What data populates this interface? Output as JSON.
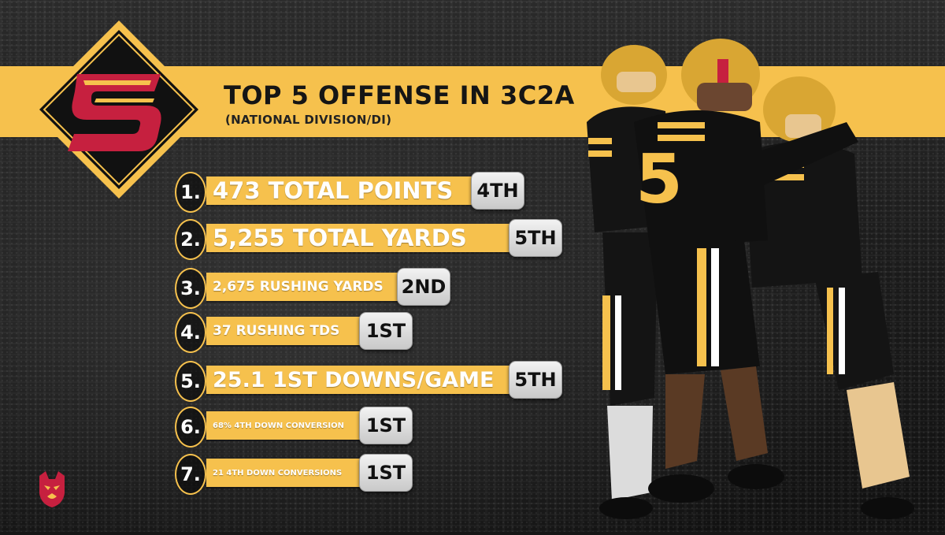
{
  "graphic": {
    "title": "TOP 5 OFFENSE IN 3C2A",
    "subtitle": "(NATIONAL DIVISION/DI)",
    "logo_letter": "S",
    "colors": {
      "gold": "#f6c14d",
      "crimson": "#c6203f",
      "dark": "#161616",
      "rank_silver": "#dcdcdc"
    }
  },
  "stats": [
    {
      "num": "1.",
      "label": "473 TOTAL POINTS",
      "rank": "4TH"
    },
    {
      "num": "2.",
      "label": "5,255 TOTAL YARDS",
      "rank": "5TH"
    },
    {
      "num": "3.",
      "label": "2,675 RUSHING YARDS",
      "rank": "2ND"
    },
    {
      "num": "4.",
      "label": "37 RUSHING TDS",
      "rank": "1ST"
    },
    {
      "num": "5.",
      "label": "25.1 1ST DOWNS/GAME",
      "rank": "5TH"
    },
    {
      "num": "6.",
      "label": "68% 4TH DOWN CONVERSION",
      "rank": "1ST"
    },
    {
      "num": "7.",
      "label": "21 4TH DOWN CONVERSIONS",
      "rank": "1ST"
    }
  ],
  "icons": {
    "main_logo": "s-diamond-logo-icon",
    "mascot": "bobcat-mascot-icon"
  }
}
